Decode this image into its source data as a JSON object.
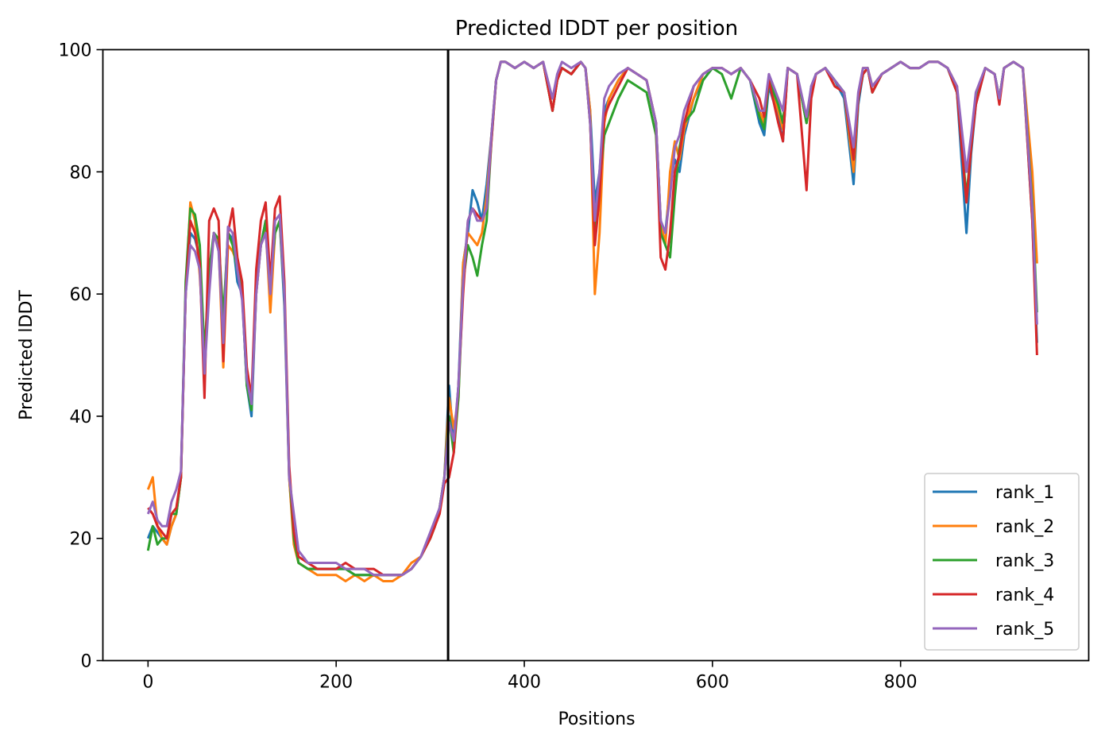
{
  "chart_data": {
    "type": "line",
    "title": "Predicted lDDT per position",
    "xlabel": "Positions",
    "ylabel": "Predicted lDDT",
    "xlim": [
      -48,
      1000
    ],
    "ylim": [
      0,
      100
    ],
    "xticks": [
      0,
      200,
      400,
      600,
      800
    ],
    "yticks": [
      0,
      20,
      40,
      60,
      80,
      100
    ],
    "grid": false,
    "legend_position": "lower right",
    "vline_x": 319,
    "vline_color": "#000000",
    "x": [
      0,
      5,
      10,
      15,
      20,
      25,
      30,
      35,
      40,
      45,
      50,
      55,
      60,
      65,
      70,
      75,
      80,
      85,
      90,
      95,
      100,
      105,
      110,
      115,
      120,
      125,
      130,
      135,
      140,
      145,
      150,
      155,
      160,
      170,
      180,
      190,
      200,
      210,
      220,
      230,
      240,
      250,
      260,
      270,
      280,
      290,
      300,
      305,
      310,
      315,
      320,
      325,
      330,
      335,
      340,
      345,
      350,
      355,
      360,
      365,
      370,
      375,
      380,
      390,
      400,
      410,
      420,
      430,
      435,
      440,
      450,
      460,
      465,
      470,
      475,
      480,
      485,
      490,
      500,
      510,
      520,
      530,
      540,
      545,
      550,
      555,
      560,
      565,
      570,
      580,
      590,
      600,
      610,
      620,
      630,
      640,
      650,
      655,
      660,
      670,
      675,
      680,
      690,
      700,
      705,
      710,
      720,
      730,
      740,
      750,
      755,
      760,
      765,
      770,
      780,
      790,
      800,
      810,
      820,
      830,
      840,
      850,
      860,
      870,
      875,
      880,
      890,
      900,
      905,
      910,
      920,
      930,
      940,
      945
    ],
    "series": [
      {
        "name": "rank_1",
        "color": "#1f77b4",
        "values": [
          20,
          22,
          21,
          20,
          19,
          22,
          24,
          30,
          60,
          70,
          69,
          66,
          48,
          62,
          70,
          68,
          55,
          70,
          69,
          62,
          60,
          45,
          40,
          60,
          68,
          72,
          60,
          70,
          72,
          58,
          30,
          20,
          16,
          15,
          15,
          15,
          15,
          15,
          14,
          14,
          14,
          14,
          14,
          14,
          15,
          17,
          20,
          22,
          25,
          30,
          45,
          35,
          45,
          65,
          70,
          77,
          75,
          72,
          78,
          86,
          95,
          98,
          98,
          97,
          98,
          97,
          98,
          90,
          95,
          97,
          96,
          98,
          97,
          90,
          75,
          80,
          90,
          92,
          95,
          97,
          96,
          95,
          88,
          72,
          70,
          78,
          82,
          80,
          86,
          92,
          95,
          97,
          97,
          96,
          97,
          95,
          88,
          86,
          94,
          89,
          85,
          97,
          96,
          88,
          94,
          96,
          97,
          95,
          92,
          78,
          91,
          96,
          97,
          93,
          96,
          97,
          98,
          97,
          97,
          98,
          98,
          97,
          93,
          70,
          83,
          91,
          97,
          96,
          92,
          97,
          98,
          97,
          72,
          52
        ]
      },
      {
        "name": "rank_2",
        "color": "#ff7f0e",
        "values": [
          28,
          30,
          22,
          20,
          19,
          22,
          24,
          30,
          60,
          75,
          72,
          63,
          50,
          62,
          70,
          68,
          48,
          68,
          67,
          65,
          60,
          46,
          42,
          60,
          68,
          71,
          57,
          70,
          72,
          60,
          30,
          19,
          16,
          15,
          14,
          14,
          14,
          13,
          14,
          13,
          14,
          13,
          13,
          14,
          16,
          17,
          20,
          22,
          25,
          30,
          43,
          38,
          43,
          65,
          70,
          69,
          68,
          70,
          76,
          86,
          95,
          98,
          98,
          97,
          98,
          97,
          98,
          90,
          95,
          97,
          96,
          98,
          97,
          90,
          60,
          70,
          88,
          92,
          95,
          97,
          96,
          95,
          88,
          72,
          68,
          80,
          85,
          82,
          87,
          92,
          96,
          97,
          97,
          96,
          97,
          95,
          90,
          88,
          95,
          90,
          87,
          97,
          96,
          88,
          93,
          96,
          97,
          94,
          93,
          80,
          92,
          97,
          97,
          94,
          96,
          97,
          98,
          97,
          97,
          98,
          98,
          97,
          94,
          75,
          84,
          92,
          97,
          96,
          92,
          97,
          98,
          97,
          80,
          65
        ]
      },
      {
        "name": "rank_3",
        "color": "#2ca02c",
        "values": [
          18,
          22,
          19,
          20,
          20,
          24,
          24,
          30,
          62,
          74,
          73,
          68,
          50,
          64,
          70,
          69,
          56,
          70,
          68,
          64,
          60,
          45,
          41,
          62,
          68,
          72,
          62,
          70,
          72,
          60,
          31,
          20,
          16,
          15,
          15,
          15,
          15,
          15,
          14,
          14,
          14,
          14,
          14,
          14,
          15,
          17,
          20,
          22,
          25,
          30,
          40,
          34,
          43,
          62,
          68,
          66,
          63,
          68,
          72,
          85,
          95,
          98,
          98,
          97,
          98,
          97,
          98,
          90,
          95,
          97,
          96,
          98,
          97,
          88,
          70,
          78,
          86,
          88,
          92,
          95,
          94,
          93,
          86,
          70,
          68,
          66,
          76,
          84,
          88,
          90,
          95,
          97,
          96,
          92,
          97,
          95,
          89,
          87,
          95,
          91,
          88,
          97,
          96,
          88,
          93,
          96,
          97,
          95,
          93,
          82,
          92,
          96,
          97,
          93,
          96,
          97,
          98,
          97,
          97,
          98,
          98,
          97,
          93,
          76,
          84,
          92,
          97,
          96,
          92,
          97,
          98,
          97,
          75,
          57
        ]
      },
      {
        "name": "rank_4",
        "color": "#d62728",
        "values": [
          25,
          24,
          22,
          21,
          20,
          24,
          25,
          30,
          60,
          72,
          70,
          65,
          43,
          72,
          74,
          72,
          49,
          70,
          74,
          66,
          62,
          48,
          43,
          64,
          72,
          75,
          62,
          74,
          76,
          62,
          32,
          21,
          17,
          16,
          15,
          15,
          15,
          16,
          15,
          15,
          15,
          14,
          14,
          14,
          15,
          17,
          20,
          22,
          24,
          29,
          30,
          34,
          45,
          60,
          72,
          74,
          73,
          72,
          74,
          85,
          95,
          98,
          98,
          97,
          98,
          97,
          98,
          90,
          95,
          97,
          96,
          98,
          97,
          88,
          68,
          76,
          89,
          91,
          94,
          97,
          96,
          95,
          88,
          66,
          64,
          70,
          80,
          83,
          88,
          94,
          96,
          97,
          97,
          96,
          97,
          95,
          92,
          89,
          95,
          88,
          85,
          97,
          96,
          77,
          92,
          96,
          97,
          94,
          93,
          82,
          92,
          96,
          97,
          93,
          96,
          97,
          98,
          97,
          97,
          98,
          98,
          97,
          93,
          75,
          84,
          91,
          97,
          96,
          91,
          97,
          98,
          97,
          72,
          50
        ]
      },
      {
        "name": "rank_5",
        "color": "#9467bd",
        "values": [
          24,
          26,
          23,
          22,
          22,
          26,
          28,
          31,
          60,
          68,
          67,
          64,
          47,
          60,
          70,
          67,
          52,
          71,
          70,
          64,
          59,
          46,
          42,
          60,
          68,
          70,
          60,
          72,
          73,
          60,
          30,
          24,
          18,
          16,
          16,
          16,
          16,
          15,
          15,
          15,
          14,
          14,
          14,
          14,
          15,
          17,
          21,
          23,
          25,
          30,
          39,
          36,
          45,
          62,
          72,
          74,
          72,
          72,
          74,
          86,
          95,
          98,
          98,
          97,
          98,
          97,
          98,
          92,
          96,
          98,
          97,
          98,
          97,
          88,
          72,
          80,
          92,
          94,
          96,
          97,
          96,
          95,
          88,
          72,
          70,
          76,
          84,
          86,
          90,
          94,
          96,
          97,
          97,
          96,
          97,
          95,
          90,
          90,
          96,
          92,
          90,
          97,
          96,
          89,
          94,
          96,
          97,
          95,
          93,
          84,
          93,
          97,
          97,
          94,
          96,
          97,
          98,
          97,
          97,
          98,
          98,
          97,
          94,
          80,
          86,
          93,
          97,
          96,
          92,
          97,
          98,
          97,
          74,
          55
        ]
      }
    ]
  }
}
